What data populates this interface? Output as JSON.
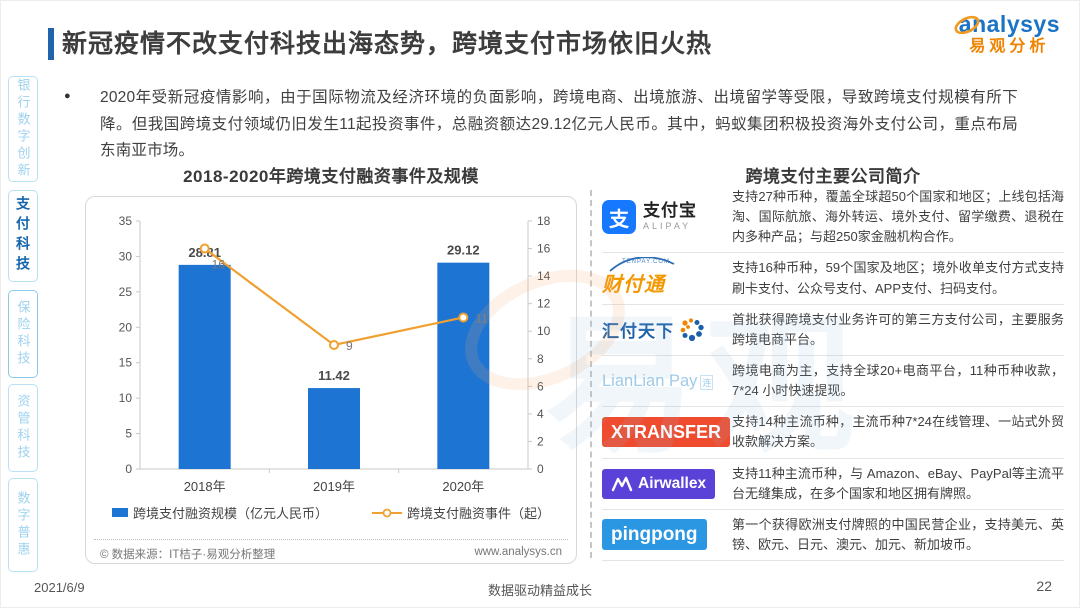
{
  "meta": {
    "date": "2021/6/9",
    "footer_center": "数据驱动精益成长",
    "page_number": "22"
  },
  "brand": {
    "name_en": "analysys",
    "name_cn": "易观分析"
  },
  "header": {
    "title": "新冠疫情不改支付科技出海态势，跨境支付市场依旧火热"
  },
  "summary": {
    "bullet": "●",
    "text": "2020年受新冠疫情影响，由于国际物流及经济环境的负面影响，跨境电商、出境旅游、出境留学等受限，导致跨境支付规模有所下降。但我国跨境支付领域仍旧发生11起投资事件，总融资额达29.12亿元人民币。其中，蚂蚁集团积极投资海外支付公司，重点布局东南亚市场。"
  },
  "sidebar": {
    "items": [
      {
        "label": "银行数字创新",
        "active": false
      },
      {
        "label": "支付科技",
        "active": true
      },
      {
        "label": "保险科技",
        "active": false
      },
      {
        "label": "资管科技",
        "active": false
      },
      {
        "label": "数字普惠",
        "active": false
      }
    ]
  },
  "theme": {
    "accent_blue": "#2263AE",
    "bar_blue": "#1E74D2",
    "line_orange": "#F0A030",
    "brand_blue": "#1A73C4",
    "brand_orange": "#F08300"
  },
  "chart": {
    "title": "2018-2020年跨境支付融资事件及规模",
    "source_left": "© 数据来源：IT桔子·易观分析整理",
    "source_right": "www.analysys.cn"
  },
  "chart_data": {
    "type": "combo",
    "title": "2018-2020年跨境支付融资事件及规模",
    "categories": [
      "2018年",
      "2019年",
      "2020年"
    ],
    "series": [
      {
        "name": "跨境支付融资规模（亿元人民币）",
        "type": "bar",
        "axis": "left",
        "color": "#1E74D2",
        "values": [
          28.81,
          11.42,
          29.12
        ]
      },
      {
        "name": "跨境支付融资事件（起）",
        "type": "line",
        "axis": "right",
        "color": "#F0A030",
        "values": [
          16,
          9,
          11
        ]
      }
    ],
    "left_axis": {
      "min": 0,
      "max": 35,
      "step": 5
    },
    "right_axis": {
      "min": 0,
      "max": 18,
      "step": 2
    },
    "grid": false,
    "legend_position": "bottom"
  },
  "companies": {
    "title": "跨境支付主要公司简介",
    "rows": [
      {
        "id": "alipay",
        "logo": {
          "type": "alipay",
          "icon_char": "支",
          "name": "支付宝",
          "sub": "ALIPAY",
          "color": "#1677FF"
        },
        "desc": "支持27种币种，覆盖全球超50个国家和地区；上线包括海淘、国际航旅、海外转运、境外支付、留学缴费、退税在内多种产品；与超250家金融机构合作。"
      },
      {
        "id": "tenpay",
        "logo": {
          "type": "tenpay",
          "name": "财付通",
          "sub": "TENPAY.COM",
          "color": "#F39800"
        },
        "desc": "支持16种币种，59个国家及地区；境外收单支付方式支持刷卡支付、公众号支付、APP支付、扫码支付。"
      },
      {
        "id": "huifu",
        "logo": {
          "type": "huifu",
          "name": "汇付天下",
          "color": "#1B5FA8"
        },
        "desc": "首批获得跨境支付业务许可的第三方支付公司，主要服务跨境电商平台。"
      },
      {
        "id": "lianlian",
        "logo": {
          "type": "lianlian",
          "name": "LianLian Pay",
          "extra": "连",
          "color": "#9FCBE8"
        },
        "desc": "跨境电商为主，支持全球20+电商平台，11种币种收款，7*24 小时快速提现。"
      },
      {
        "id": "xtransfer",
        "logo": {
          "type": "block",
          "name": "XTRANSFER",
          "bg": "#EF4B2F",
          "fg": "#FFFFFF",
          "font_size": "18px"
        },
        "desc": "支持14种主流币种，主流币种7*24在线管理、一站式外贸收款解决方案。"
      },
      {
        "id": "airwallex",
        "logo": {
          "type": "airwallex",
          "name": "Airwallex",
          "bg": "#5A41D8",
          "fg": "#FFFFFF",
          "font_size": "15.5px"
        },
        "desc": "支持11种主流币种，与 Amazon、eBay、PayPal等主流平台无缝集成，在多个国家和地区拥有牌照。"
      },
      {
        "id": "pingpong",
        "logo": {
          "type": "block",
          "name": "pingpong",
          "bg": "#2B97E3",
          "fg": "#FFFFFF",
          "font_size": "19px"
        },
        "desc": "第一个获得欧洲支付牌照的中国民营企业，支持美元、英镑、欧元、日元、澳元、加元、新加坡币。"
      }
    ]
  },
  "watermark": {
    "text": "易观"
  }
}
